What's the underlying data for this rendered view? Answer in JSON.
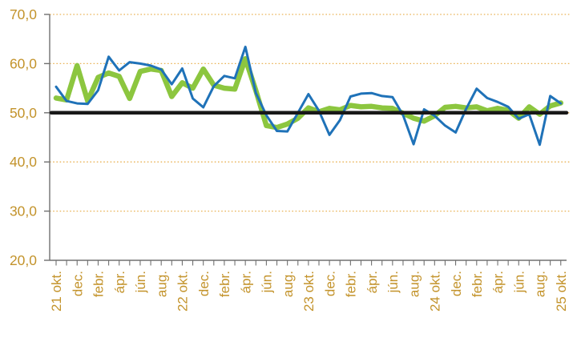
{
  "chart_data": {
    "type": "line",
    "title": "",
    "legend": "none",
    "grid_style": "dotted",
    "n_points": 49,
    "label_every_n_ticks": 2,
    "x_tick_labels": [
      "21 okt.",
      "dec.",
      "febr.",
      "ápr.",
      "jún.",
      "aug.",
      "22 okt.",
      "dec.",
      "febr.",
      "ápr.",
      "jún.",
      "aug.",
      "23 okt.",
      "dec.",
      "febr.",
      "ápr.",
      "jún.",
      "aug.",
      "24 okt.",
      "dec.",
      "febr.",
      "ápr.",
      "jún.",
      "aug.",
      "25 okt."
    ],
    "y_tick_labels": [
      "70,0",
      "60,0",
      "50,0",
      "40,0",
      "30,0",
      "20,0"
    ],
    "y_tick_values": [
      70,
      60,
      50,
      40,
      30,
      20
    ],
    "ylim": [
      20,
      70
    ],
    "gridline_values": [
      70,
      60,
      50,
      40,
      30
    ],
    "reference_line": {
      "value": 50.0,
      "color": "#181818",
      "stroke_width": 4.5
    },
    "series": [
      {
        "name": "green-line",
        "color": "#8CC63F",
        "stroke_width": 6.5,
        "values": [
          53.0,
          52.6,
          59.6,
          52.4,
          57.2,
          58.1,
          57.4,
          52.9,
          58.4,
          58.9,
          58.6,
          53.3,
          56.1,
          55.0,
          58.9,
          55.6,
          55.0,
          54.8,
          61.0,
          54.5,
          47.4,
          47.0,
          47.7,
          48.9,
          51.0,
          50.2,
          50.9,
          50.6,
          51.5,
          51.2,
          51.3,
          51.0,
          50.9,
          49.9,
          48.9,
          48.3,
          49.4,
          51.1,
          51.3,
          51.0,
          51.2,
          50.4,
          50.9,
          50.5,
          48.9,
          51.2,
          49.7,
          51.4,
          52.0
        ]
      },
      {
        "name": "blue-line",
        "color": "#1F72B8",
        "stroke_width": 3,
        "values": [
          55.3,
          52.4,
          51.9,
          51.8,
          54.6,
          61.4,
          58.6,
          60.3,
          60.0,
          59.6,
          58.8,
          55.8,
          59.0,
          52.9,
          51.1,
          55.4,
          57.5,
          57.0,
          63.4,
          54.0,
          49.5,
          46.3,
          46.2,
          50.0,
          53.8,
          50.4,
          45.5,
          48.5,
          53.3,
          53.9,
          54.0,
          53.4,
          53.2,
          49.5,
          43.6,
          50.7,
          49.4,
          47.4,
          46.0,
          50.8,
          54.9,
          53.0,
          52.2,
          51.2,
          48.8,
          49.7,
          43.5,
          53.4,
          51.9
        ]
      }
    ],
    "colors": {
      "axis": "#707070",
      "tick_label": "#C3932B",
      "gridline": "#E9B357"
    }
  }
}
